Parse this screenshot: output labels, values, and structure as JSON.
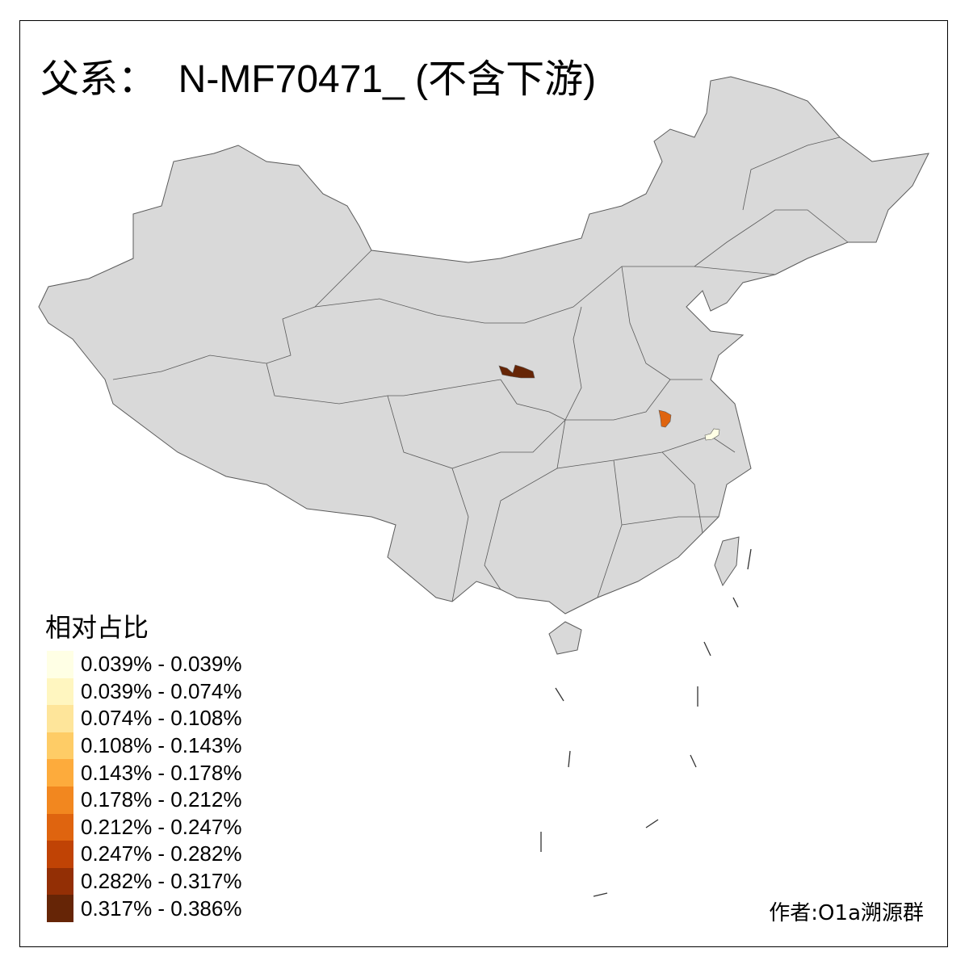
{
  "title": "父系：  N-MF70471_ (不含下游)",
  "legend": {
    "title": "相对占比",
    "items": [
      {
        "label": "0.039% - 0.039%",
        "color": "#FFFFE5"
      },
      {
        "label": "0.039% - 0.074%",
        "color": "#FFF6C0"
      },
      {
        "label": "0.074% - 0.108%",
        "color": "#FEE59A"
      },
      {
        "label": "0.108% - 0.143%",
        "color": "#FECC66"
      },
      {
        "label": "0.143% - 0.178%",
        "color": "#FDAB3C"
      },
      {
        "label": "0.178% - 0.212%",
        "color": "#F2871F"
      },
      {
        "label": "0.212% - 0.247%",
        "color": "#DF640F"
      },
      {
        "label": "0.247% - 0.282%",
        "color": "#C04305"
      },
      {
        "label": "0.282% - 0.317%",
        "color": "#932F05"
      },
      {
        "label": "0.317% - 0.386%",
        "color": "#662506"
      }
    ]
  },
  "map": {
    "base_color": "#D9D9D9",
    "border_color": "#5A5A5A",
    "highlighted_regions": [
      {
        "class": "0.317% - 0.386%",
        "color": "#662506"
      },
      {
        "class": "0.212% - 0.247%",
        "color": "#DF640F"
      },
      {
        "class": "0.039% - 0.039%",
        "color": "#FFFFE5"
      }
    ]
  },
  "credit": "作者:O1a溯源群"
}
